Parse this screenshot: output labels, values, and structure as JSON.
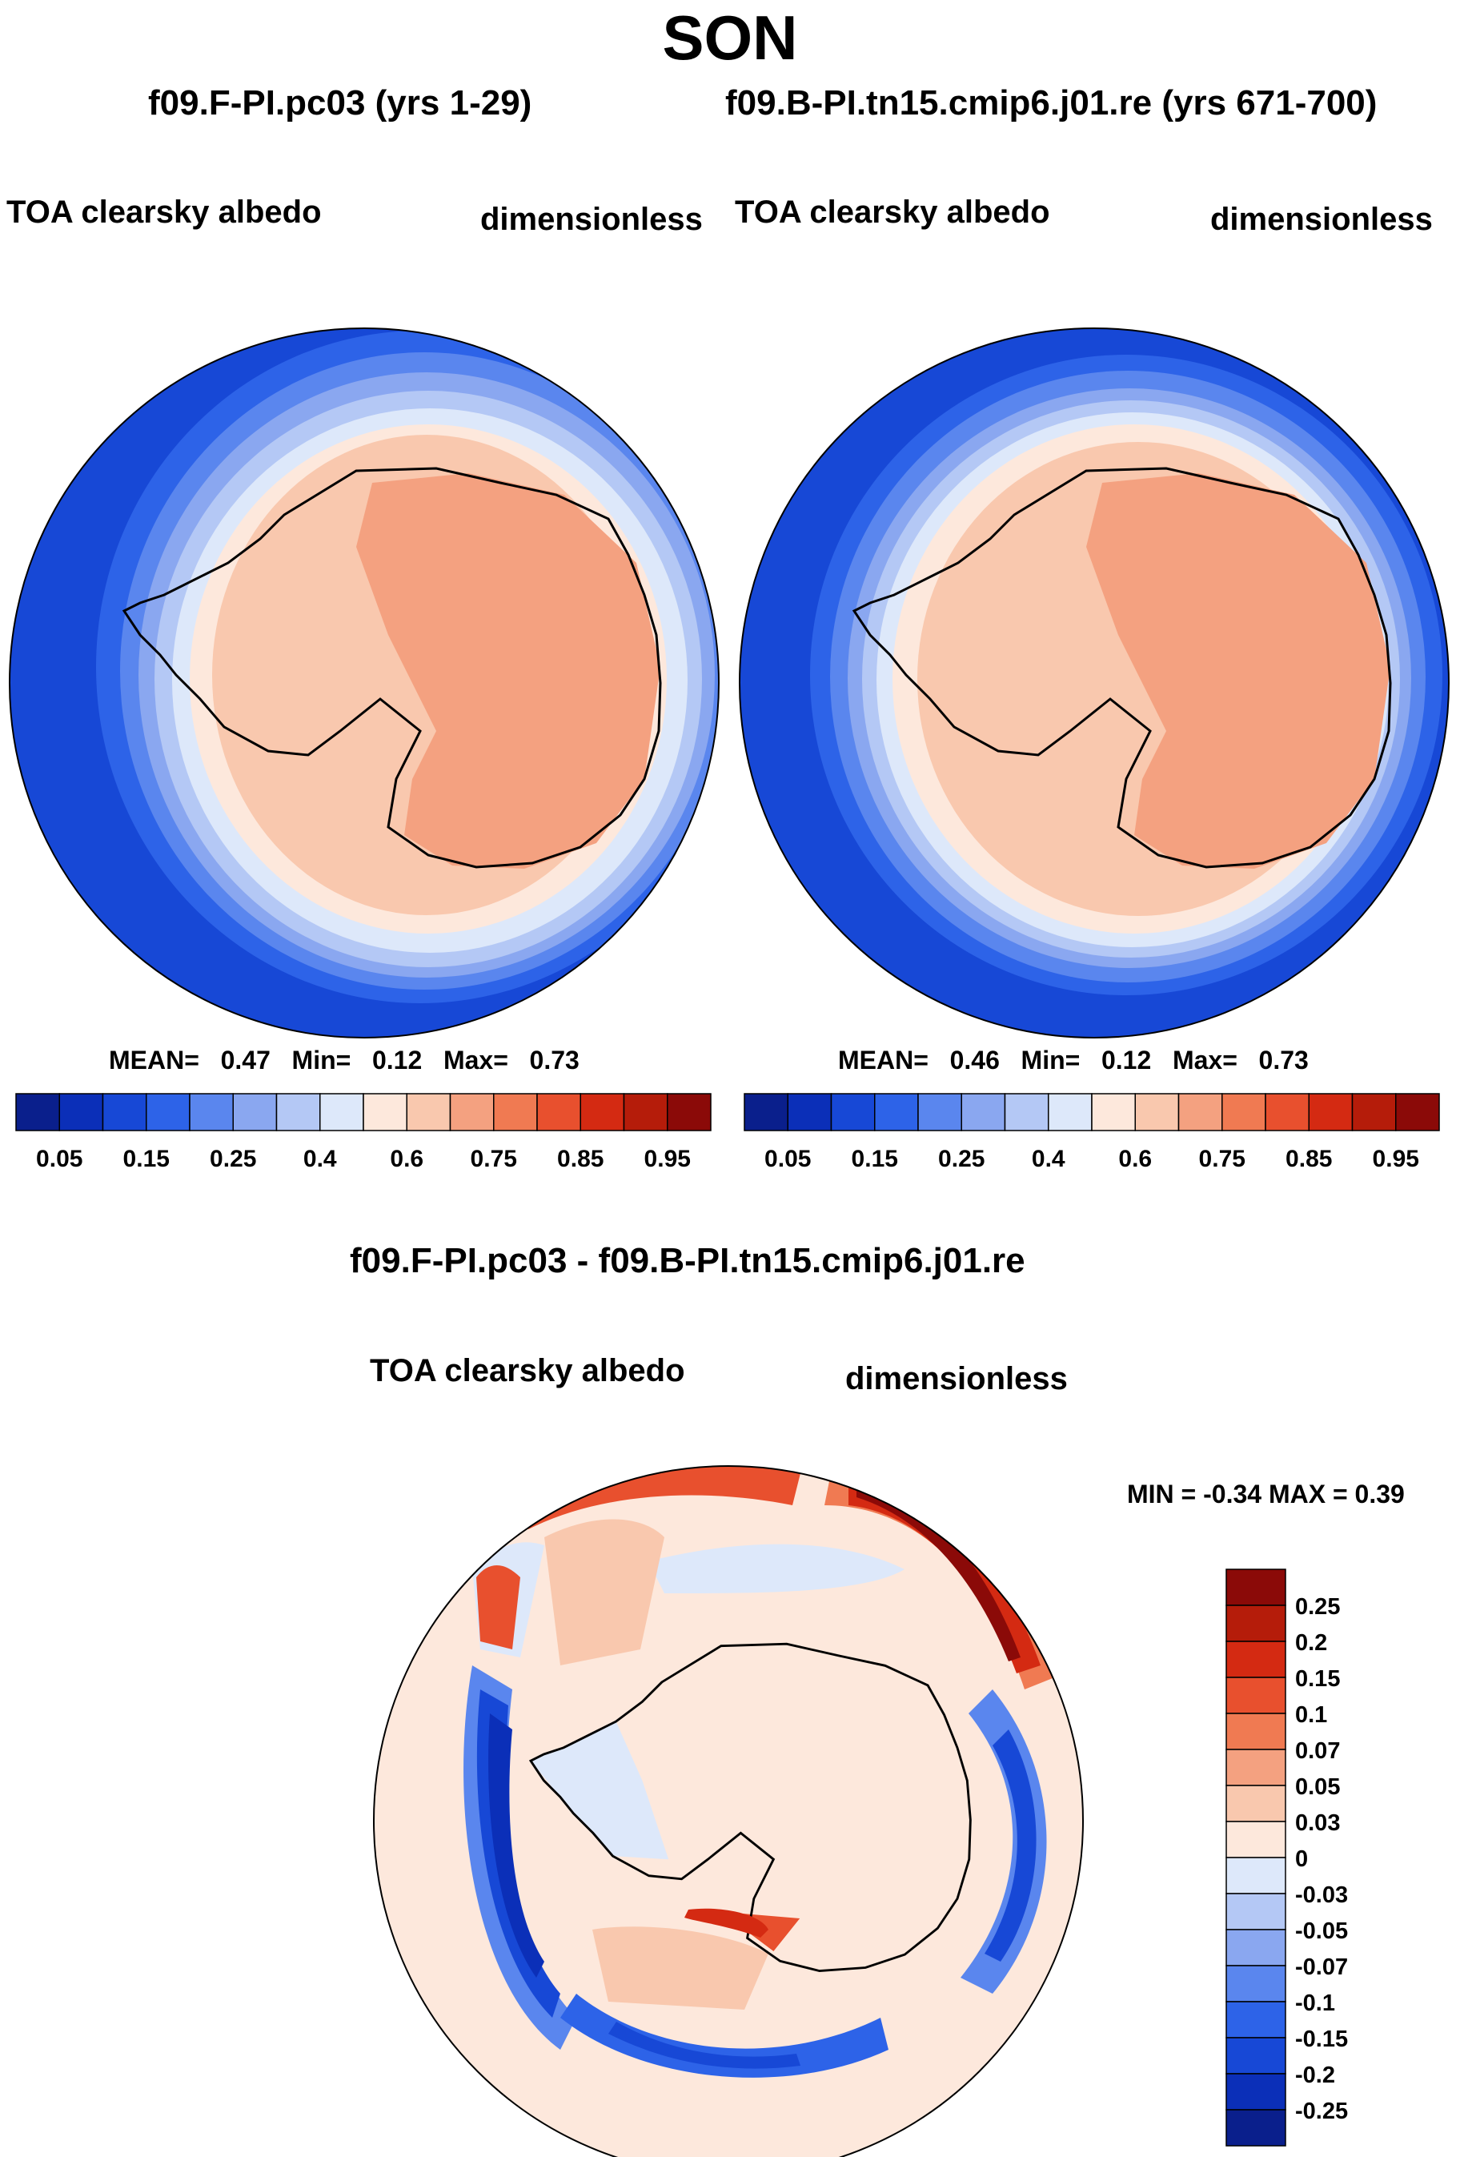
{
  "figure_title": "SON",
  "panels": {
    "left": {
      "case_title": "f09.F-PI.pc03 (yrs 1-29)",
      "variable": "TOA clearsky albedo",
      "units": "dimensionless",
      "stats": {
        "mean_label": "MEAN=",
        "mean": "0.47",
        "min_label": "Min=",
        "min": "0.12",
        "max_label": "Max=",
        "max": "0.73"
      }
    },
    "right": {
      "case_title": "f09.B-PI.tn15.cmip6.j01.re (yrs 671-700)",
      "variable": "TOA clearsky albedo",
      "units": "dimensionless",
      "stats": {
        "mean_label": "MEAN=",
        "mean": "0.46",
        "min_label": "Min=",
        "min": "0.12",
        "max_label": "Max=",
        "max": "0.73"
      }
    },
    "diff": {
      "case_title": "f09.F-PI.pc03 - f09.B-PI.tn15.cmip6.j01.re",
      "variable": "TOA clearsky albedo",
      "units": "dimensionless",
      "minmax": "MIN =  -0.34 MAX =   0.39"
    }
  },
  "colorbar_abs": {
    "colors": [
      "#0a1f8c",
      "#0b2fb8",
      "#1748d6",
      "#2d63e8",
      "#5a86ee",
      "#8aa7f0",
      "#b4c8f5",
      "#dde8fa",
      "#fde8dc",
      "#f9c8ae",
      "#f4a180",
      "#f07a52",
      "#e8502e",
      "#d42a12",
      "#b51c0a",
      "#8b0a08"
    ],
    "tick_labels": [
      "0.05",
      "0.15",
      "0.25",
      "0.4",
      "0.6",
      "0.75",
      "0.85",
      "0.95"
    ]
  },
  "colorbar_diff": {
    "colors": [
      "#0a1f8c",
      "#0b2fb8",
      "#1748d6",
      "#2d63e8",
      "#5a86ee",
      "#8aa7f0",
      "#b4c8f5",
      "#dde8fa",
      "#fde8dc",
      "#f9c8ae",
      "#f4a180",
      "#f07a52",
      "#e8502e",
      "#d42a12",
      "#b51c0a",
      "#8b0a08"
    ],
    "tick_labels": [
      "0.25",
      "0.2",
      "0.15",
      "0.1",
      "0.07",
      "0.05",
      "0.03",
      "0",
      "-0.03",
      "-0.05",
      "-0.07",
      "-0.1",
      "-0.15",
      "-0.2",
      "-0.25"
    ]
  },
  "chart_data": [
    {
      "type": "heatmap",
      "title": "f09.F-PI.pc03 (yrs 1-29)",
      "variable": "TOA clearsky albedo",
      "units": "dimensionless",
      "projection": "south polar stereographic",
      "mean": 0.47,
      "min": 0.12,
      "max": 0.73,
      "levels": [
        0.05,
        0.1,
        0.15,
        0.2,
        0.25,
        0.3,
        0.4,
        0.5,
        0.6,
        0.65,
        0.75,
        0.8,
        0.85,
        0.9,
        0.95
      ]
    },
    {
      "type": "heatmap",
      "title": "f09.B-PI.tn15.cmip6.j01.re (yrs 671-700)",
      "variable": "TOA clearsky albedo",
      "units": "dimensionless",
      "projection": "south polar stereographic",
      "mean": 0.46,
      "min": 0.12,
      "max": 0.73,
      "levels": [
        0.05,
        0.1,
        0.15,
        0.2,
        0.25,
        0.3,
        0.4,
        0.5,
        0.6,
        0.65,
        0.75,
        0.8,
        0.85,
        0.9,
        0.95
      ]
    },
    {
      "type": "heatmap",
      "title": "f09.F-PI.pc03 - f09.B-PI.tn15.cmip6.j01.re",
      "variable": "TOA clearsky albedo",
      "units": "dimensionless",
      "projection": "south polar stereographic",
      "min": -0.34,
      "max": 0.39,
      "levels": [
        -0.25,
        -0.2,
        -0.15,
        -0.1,
        -0.07,
        -0.05,
        -0.03,
        0,
        0.03,
        0.05,
        0.07,
        0.1,
        0.15,
        0.2,
        0.25
      ]
    }
  ]
}
